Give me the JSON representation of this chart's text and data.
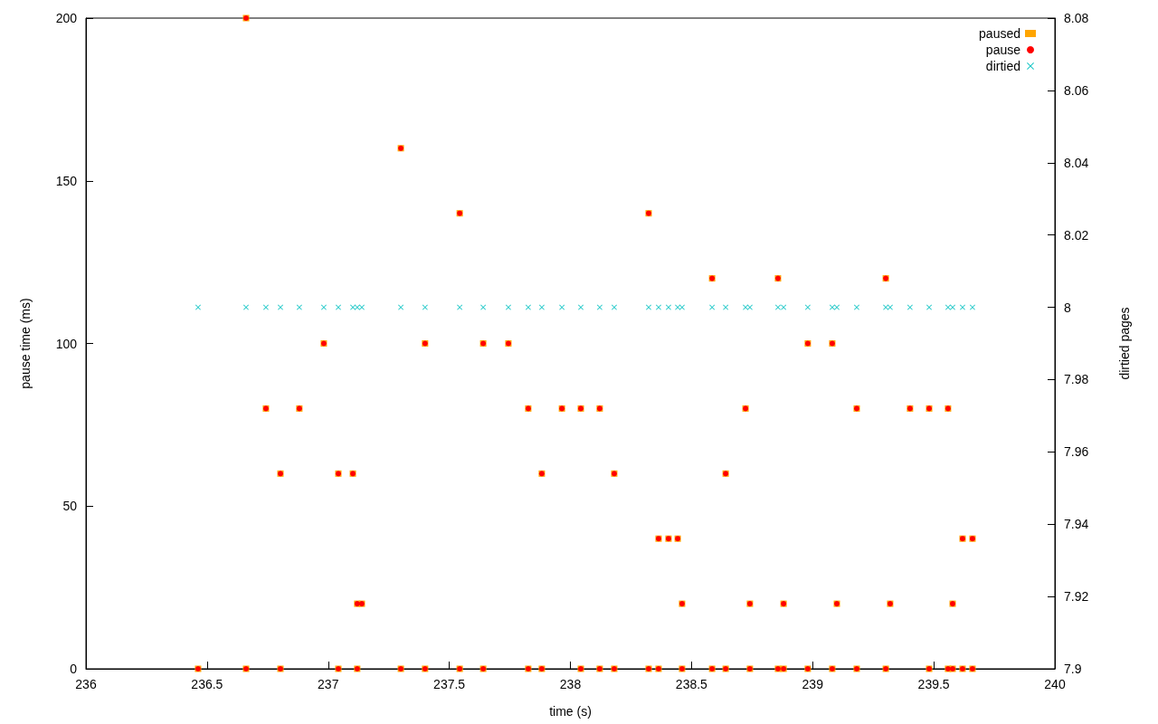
{
  "chart_data": {
    "type": "scatter",
    "xlabel": "time (s)",
    "ylabel": "pause time (ms)",
    "y2label": "dirtied pages",
    "xlim": [
      236,
      240
    ],
    "xticks": [
      236,
      236.5,
      237,
      237.5,
      238,
      238.5,
      239,
      239.5,
      240
    ],
    "ylim": [
      0,
      200
    ],
    "yticks": [
      0,
      50,
      100,
      150,
      200
    ],
    "y2lim": [
      7.9,
      8.08
    ],
    "y2ticks": [
      7.9,
      7.92,
      7.94,
      7.96,
      7.98,
      8,
      8.02,
      8.04,
      8.06,
      8.08
    ],
    "grid": false,
    "legend": "top right",
    "series": [
      {
        "name": "paused",
        "color": "#ffa500",
        "marker": "square",
        "x": [
          236.463,
          236.661,
          236.661,
          236.743,
          236.803,
          236.803,
          236.881,
          236.982,
          237.042,
          237.042,
          237.102,
          237.12,
          237.12,
          237.139,
          237.3,
          237.3,
          237.4,
          237.4,
          237.543,
          237.543,
          237.64,
          237.64,
          237.744,
          237.826,
          237.826,
          237.882,
          237.882,
          237.965,
          238.043,
          238.043,
          238.121,
          238.121,
          238.181,
          238.181,
          238.323,
          238.323,
          238.364,
          238.364,
          238.405,
          238.443,
          238.461,
          238.461,
          238.585,
          238.585,
          238.641,
          238.641,
          238.723,
          238.741,
          238.741,
          238.857,
          238.857,
          238.88,
          238.88,
          238.98,
          238.98,
          239.081,
          239.081,
          239.1,
          239.182,
          239.182,
          239.302,
          239.302,
          239.32,
          239.402,
          239.481,
          239.481,
          239.559,
          239.559,
          239.578,
          239.578,
          239.619,
          239.619,
          239.66,
          239.66
        ],
        "values": [
          0,
          200,
          0,
          80,
          60,
          0,
          80,
          100,
          60,
          0,
          60,
          20,
          0,
          20,
          160,
          0,
          100,
          0,
          140,
          0,
          100,
          0,
          100,
          80,
          0,
          60,
          0,
          80,
          80,
          0,
          80,
          0,
          60,
          0,
          140,
          0,
          40,
          0,
          40,
          40,
          20,
          0,
          120,
          0,
          60,
          0,
          80,
          20,
          0,
          120,
          0,
          20,
          0,
          100,
          0,
          100,
          0,
          20,
          80,
          0,
          120,
          0,
          20,
          80,
          80,
          0,
          80,
          0,
          20,
          0,
          40,
          0,
          40,
          0
        ]
      },
      {
        "name": "pause",
        "color": "#ff0000",
        "marker": "circle",
        "x": [
          236.463,
          236.661,
          236.661,
          236.743,
          236.803,
          236.803,
          236.881,
          236.982,
          237.042,
          237.042,
          237.102,
          237.12,
          237.12,
          237.139,
          237.3,
          237.3,
          237.4,
          237.4,
          237.543,
          237.543,
          237.64,
          237.64,
          237.744,
          237.826,
          237.826,
          237.882,
          237.882,
          237.965,
          238.043,
          238.043,
          238.121,
          238.121,
          238.181,
          238.181,
          238.323,
          238.323,
          238.364,
          238.364,
          238.405,
          238.443,
          238.461,
          238.461,
          238.585,
          238.585,
          238.641,
          238.641,
          238.723,
          238.741,
          238.741,
          238.857,
          238.857,
          238.88,
          238.88,
          238.98,
          238.98,
          239.081,
          239.081,
          239.1,
          239.182,
          239.182,
          239.302,
          239.302,
          239.32,
          239.402,
          239.481,
          239.481,
          239.559,
          239.559,
          239.578,
          239.578,
          239.619,
          239.619,
          239.66,
          239.66
        ],
        "values": [
          0,
          200,
          0,
          80,
          60,
          0,
          80,
          100,
          60,
          0,
          60,
          20,
          0,
          20,
          160,
          0,
          100,
          0,
          140,
          0,
          100,
          0,
          100,
          80,
          0,
          60,
          0,
          80,
          80,
          0,
          80,
          0,
          60,
          0,
          140,
          0,
          40,
          0,
          40,
          40,
          20,
          0,
          120,
          0,
          60,
          0,
          80,
          20,
          0,
          120,
          0,
          20,
          0,
          100,
          0,
          100,
          0,
          20,
          80,
          0,
          120,
          0,
          20,
          80,
          80,
          0,
          80,
          0,
          20,
          0,
          40,
          0,
          40,
          0
        ]
      },
      {
        "name": "dirtied",
        "color": "#20c8c8",
        "marker": "cross",
        "axis": "y2",
        "x": [
          236.463,
          236.661,
          236.743,
          236.803,
          236.881,
          236.982,
          237.042,
          237.102,
          237.12,
          237.139,
          237.3,
          237.4,
          237.543,
          237.64,
          237.744,
          237.826,
          237.882,
          237.965,
          238.043,
          238.121,
          238.181,
          238.323,
          238.364,
          238.405,
          238.443,
          238.461,
          238.585,
          238.641,
          238.723,
          238.741,
          238.857,
          238.88,
          238.98,
          239.081,
          239.1,
          239.182,
          239.302,
          239.32,
          239.402,
          239.481,
          239.559,
          239.578,
          239.619,
          239.66
        ],
        "values": [
          8,
          8,
          8,
          8,
          8,
          8,
          8,
          8,
          8,
          8,
          8,
          8,
          8,
          8,
          8,
          8,
          8,
          8,
          8,
          8,
          8,
          8,
          8,
          8,
          8,
          8,
          8,
          8,
          8,
          8,
          8,
          8,
          8,
          8,
          8,
          8,
          8,
          8,
          8,
          8,
          8,
          8,
          8,
          8
        ]
      }
    ]
  }
}
